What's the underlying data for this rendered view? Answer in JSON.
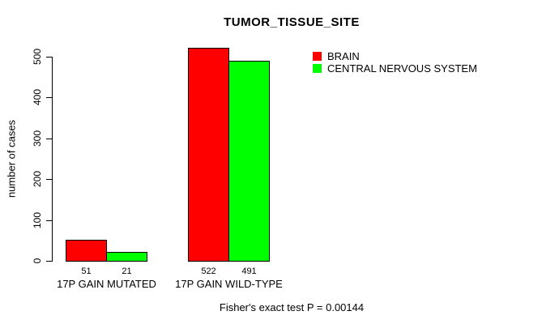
{
  "title": "TUMOR_TISSUE_SITE",
  "footer": "Fisher's exact test P = 0.00144",
  "chart_data": {
    "type": "bar",
    "title": "TUMOR_TISSUE_SITE",
    "ylabel": "number of cases",
    "xlabel": "",
    "categories": [
      "17P GAIN MUTATED",
      "17P GAIN WILD-TYPE"
    ],
    "series": [
      {
        "name": "BRAIN",
        "color": "#ff0000",
        "values": [
          51,
          522
        ]
      },
      {
        "name": "CENTRAL NERVOUS SYSTEM",
        "color": "#00ff00",
        "values": [
          21,
          491
        ]
      }
    ],
    "bar_value_labels": [
      [
        "51",
        "522"
      ],
      [
        "21",
        "491"
      ]
    ],
    "yticks": [
      0,
      100,
      200,
      300,
      400,
      500
    ],
    "ylim": [
      0,
      530
    ],
    "grid": false,
    "legend_position": "top-right",
    "annotation": "Fisher's exact test P = 0.00144"
  }
}
